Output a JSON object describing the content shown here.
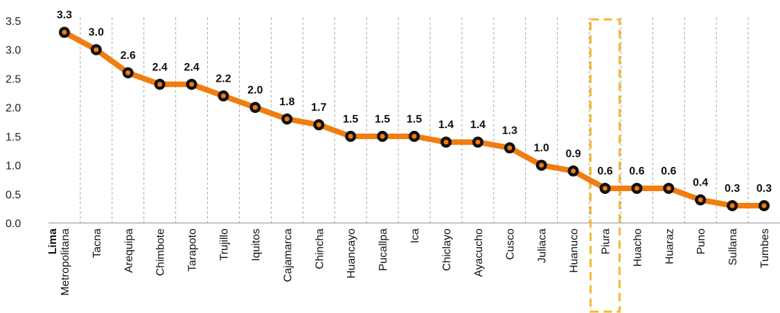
{
  "chart_data": {
    "type": "line",
    "categories": [
      "Lima Metropolitana",
      "Tacna",
      "Arequipa",
      "Chimbote",
      "Tarapoto",
      "Trujillo",
      "Iquitos",
      "Cajamarca",
      "Chincha",
      "Huancayo",
      "Pucallpa",
      "Ica",
      "Chiclayo",
      "Ayacucho",
      "Cusco",
      "Juliaca",
      "Huanuco",
      "Piura",
      "Huacho",
      "Huaraz",
      "Puno",
      "Sullana",
      "Tumbes"
    ],
    "category_lines": [
      [
        "Lima",
        "Metropolitana"
      ],
      [
        "Tacna"
      ],
      [
        "Arequipa"
      ],
      [
        "Chimbote"
      ],
      [
        "Tarapoto"
      ],
      [
        "Trujillo"
      ],
      [
        "Iquitos"
      ],
      [
        "Cajamarca"
      ],
      [
        "Chincha"
      ],
      [
        "Huancayo"
      ],
      [
        "Pucallpa"
      ],
      [
        "Ica"
      ],
      [
        "Chiclayo"
      ],
      [
        "Ayacucho"
      ],
      [
        "Cusco"
      ],
      [
        "Juliaca"
      ],
      [
        "Huanuco"
      ],
      [
        "Piura"
      ],
      [
        "Huacho"
      ],
      [
        "Huaraz"
      ],
      [
        "Puno"
      ],
      [
        "Sullana"
      ],
      [
        "Tumbes"
      ]
    ],
    "values": [
      3.3,
      3.0,
      2.6,
      2.4,
      2.4,
      2.2,
      2.0,
      1.8,
      1.7,
      1.5,
      1.5,
      1.5,
      1.4,
      1.4,
      1.3,
      1.0,
      0.9,
      0.6,
      0.6,
      0.6,
      0.4,
      0.3,
      0.3
    ],
    "data_labels": [
      "3.3",
      "3.0",
      "2.6",
      "2.4",
      "2.4",
      "2.2",
      "2.0",
      "1.8",
      "1.7",
      "1.5",
      "1.5",
      "1.5",
      "1.4",
      "1.4",
      "1.3",
      "1.0",
      "0.9",
      "0.6",
      "0.6",
      "0.6",
      "0.4",
      "0.3",
      "0.3"
    ],
    "y_ticks": [
      "0.0",
      "0.5",
      "1.0",
      "1.5",
      "2.0",
      "2.5",
      "3.0",
      "3.5"
    ],
    "ylim": [
      0,
      3.5
    ],
    "title": "",
    "xlabel": "",
    "ylabel": "",
    "grid": "vertical dashed",
    "bold_category_first_line": "Lima",
    "highlighted_category": "Piura",
    "colors": {
      "line": "#f07d0f",
      "marker_ring": "#111111",
      "marker_fill": "#f07d0f",
      "grid": "#aaaaaa",
      "highlight": "#f5b82e"
    }
  }
}
